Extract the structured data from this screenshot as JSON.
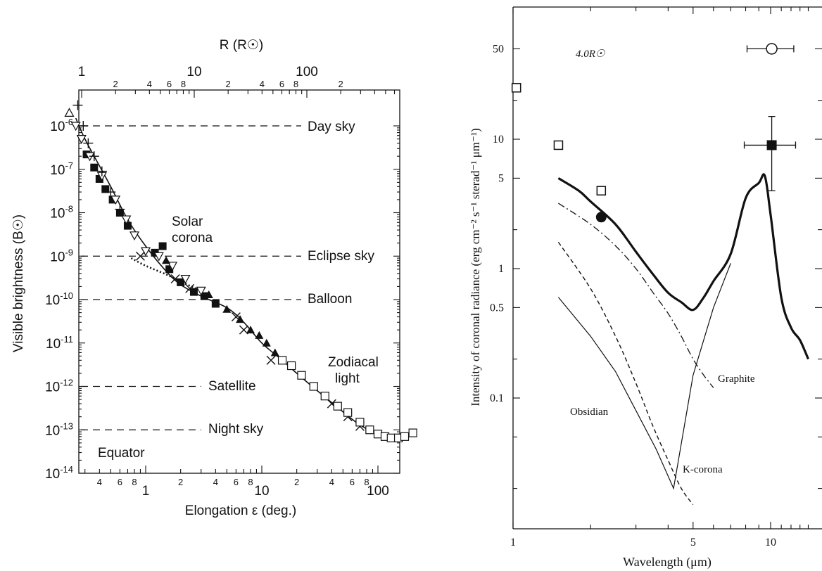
{
  "chart_data": [
    {
      "type": "scatter",
      "title": "",
      "top_axis": {
        "label": "R (R☉)",
        "major_ticks": [
          1,
          10,
          100
        ],
        "minor_tick_labels": [
          {
            "value": 2,
            "label": "2"
          },
          {
            "value": 4,
            "label": "4"
          },
          {
            "value": 6,
            "label": "6"
          },
          {
            "value": 8,
            "label": "8"
          },
          {
            "value": 20,
            "label": "2"
          },
          {
            "value": 40,
            "label": "4"
          },
          {
            "value": 60,
            "label": "6"
          },
          {
            "value": 80,
            "label": "8"
          },
          {
            "value": 200,
            "label": "2"
          }
        ],
        "range": [
          1,
          400
        ],
        "scale": "log"
      },
      "xlabel": "Elongation ε (deg.)",
      "ylabel": "Visible brightness (B☉)",
      "xlim": [
        0.2,
        200
      ],
      "ylim": [
        1e-14,
        5e-06
      ],
      "xscale": "log",
      "yscale": "log",
      "x_major_ticks": [
        {
          "value": 1,
          "label": "1"
        },
        {
          "value": 10,
          "label": "10"
        },
        {
          "value": 100,
          "label": "100"
        }
      ],
      "x_minor_tick_labels": [
        {
          "value": 0.4,
          "label": "4"
        },
        {
          "value": 0.6,
          "label": "6"
        },
        {
          "value": 0.8,
          "label": "8"
        },
        {
          "value": 2,
          "label": "2"
        },
        {
          "value": 4,
          "label": "4"
        },
        {
          "value": 6,
          "label": "6"
        },
        {
          "value": 8,
          "label": "8"
        },
        {
          "value": 20,
          "label": "2"
        },
        {
          "value": 40,
          "label": "4"
        },
        {
          "value": 60,
          "label": "6"
        },
        {
          "value": 80,
          "label": "8"
        }
      ],
      "y_ticks": [
        {
          "exp": -14
        },
        {
          "exp": -13
        },
        {
          "exp": -12
        },
        {
          "exp": -11
        },
        {
          "exp": -10
        },
        {
          "exp": -9
        },
        {
          "exp": -8
        },
        {
          "exp": -7
        },
        {
          "exp": -6
        }
      ],
      "reference_lines": [
        {
          "label": "Day sky",
          "y": 1e-06
        },
        {
          "label": "Eclipse sky",
          "y": 1e-09
        },
        {
          "label": "Balloon",
          "y": 1e-10
        },
        {
          "label": "Satellite",
          "y": 1e-12
        },
        {
          "label": "Night sky",
          "y": 1e-13
        }
      ],
      "annotations": {
        "corona_line1": "Solar",
        "corona_line2": "corona",
        "zodiacal_line1": "Zodiacal",
        "zodiacal_line2": "light",
        "equator": "Equator"
      },
      "fit_curve": {
        "x": [
          0.25,
          0.3,
          0.4,
          0.5,
          0.7,
          1.0,
          1.5,
          2,
          3,
          5,
          7,
          10,
          15,
          20,
          30,
          50,
          70,
          100,
          130,
          160,
          200
        ],
        "y": [
          1.5e-06,
          5e-07,
          1.2e-07,
          4e-08,
          7e-09,
          1.7e-09,
          4.5e-10,
          2.2e-10,
          1.2e-10,
          6.5e-11,
          3e-11,
          1e-11,
          4e-12,
          2e-12,
          8e-13,
          2.6e-13,
          1.3e-13,
          8e-14,
          7e-14,
          7e-14,
          8.5e-14
        ]
      },
      "dotted_curve": {
        "x": [
          0.75,
          1.0,
          1.5,
          2.0,
          2.7
        ],
        "y": [
          9e-10,
          6e-10,
          3.8e-10,
          2.6e-10,
          1.8e-10
        ]
      },
      "series": [
        {
          "marker": "filled-square",
          "x": [
            0.31,
            0.36,
            0.4,
            0.45,
            0.52,
            0.6,
            0.7,
            1.2,
            1.4,
            1.6,
            2.0,
            2.6,
            3.2,
            4.0
          ],
          "y": [
            2.2e-07,
            1.1e-07,
            6e-08,
            3.5e-08,
            2e-08,
            1e-08,
            5e-09,
            1.2e-09,
            1.7e-09,
            5e-10,
            2.5e-10,
            1.5e-10,
            1.2e-10,
            8e-11
          ]
        },
        {
          "marker": "open-triangle-down",
          "x": [
            0.25,
            0.28,
            0.33,
            0.42,
            0.55,
            0.68,
            0.8,
            1.0,
            1.3,
            1.7,
            2.2,
            3.0
          ],
          "y": [
            1e-06,
            5e-07,
            2e-07,
            7e-08,
            2e-08,
            7e-09,
            3e-09,
            1.3e-09,
            1e-09,
            6e-10,
            3e-10,
            1.6e-10
          ]
        },
        {
          "marker": "plus",
          "x": [
            0.26,
            0.29,
            0.32,
            0.36,
            0.42,
            0.5,
            0.6
          ],
          "y": [
            3e-06,
            1e-06,
            4e-07,
            2e-07,
            9e-08,
            3e-08,
            1.2e-08
          ]
        },
        {
          "marker": "cross",
          "x": [
            0.9,
            1.8,
            2.4,
            6.0,
            7.0,
            12,
            40,
            55,
            70
          ],
          "y": [
            1e-09,
            3e-10,
            1.8e-10,
            4e-11,
            2e-11,
            4e-12,
            4e-13,
            2e-13,
            1.2e-13
          ]
        },
        {
          "marker": "filled-triangle",
          "x": [
            1.5,
            3.5,
            5,
            6.5,
            8,
            9.5,
            11,
            13
          ],
          "y": [
            8e-10,
            1.3e-10,
            6e-11,
            3.5e-11,
            2e-11,
            1.5e-11,
            1e-11,
            6e-12
          ]
        },
        {
          "marker": "open-square",
          "x": [
            15,
            18,
            22,
            28,
            35,
            45,
            55,
            70,
            85,
            100,
            115,
            130,
            150,
            170,
            200
          ],
          "y": [
            4e-12,
            3e-12,
            1.8e-12,
            1e-12,
            6e-13,
            3.5e-13,
            2.5e-13,
            1.5e-13,
            1e-13,
            8e-14,
            7e-14,
            6.5e-14,
            6.5e-14,
            7e-14,
            8.5e-14
          ]
        },
        {
          "marker": "open-triangle-up",
          "x": [
            0.22
          ],
          "y": [
            2e-06
          ]
        }
      ]
    },
    {
      "type": "line",
      "title": "",
      "annotation": "4.0R☉",
      "xlabel": "Wavelength (μm)",
      "ylabel": "Intensity of coronal radiance (erg cm⁻² s⁻¹ sterad⁻¹ μm⁻¹)",
      "xlim": [
        1,
        14
      ],
      "ylim": [
        0.009,
        100
      ],
      "xscale": "log",
      "yscale": "log",
      "x_ticks": [
        {
          "value": 1,
          "label": "1"
        },
        {
          "value": 5,
          "label": "5"
        },
        {
          "value": 10,
          "label": "10"
        }
      ],
      "y_ticks": [
        {
          "value": 0.1,
          "label": "0.1"
        },
        {
          "value": 0.5,
          "label": "0.5"
        },
        {
          "value": 1,
          "label": "1"
        },
        {
          "value": 5,
          "label": "5"
        },
        {
          "value": 10,
          "label": "10"
        },
        {
          "value": 50,
          "label": "50"
        }
      ],
      "series": [
        {
          "name": "Obsidian",
          "style": "thin-solid",
          "x": [
            1.5,
            2.0,
            2.5,
            3.0,
            3.6,
            4.2,
            5.0,
            6.0,
            7.0
          ],
          "y": [
            0.6,
            0.3,
            0.16,
            0.08,
            0.04,
            0.02,
            0.15,
            0.5,
            1.1
          ]
        },
        {
          "name": "K-corona",
          "style": "dashed",
          "x": [
            1.5,
            2.0,
            2.5,
            3.0,
            3.5,
            4.0,
            4.5,
            5.0
          ],
          "y": [
            1.6,
            0.7,
            0.3,
            0.13,
            0.06,
            0.033,
            0.02,
            0.015
          ]
        },
        {
          "name": "Graphite",
          "style": "dash-dot",
          "x": [
            1.5,
            2.0,
            2.5,
            3.0,
            3.5,
            4.0,
            4.5,
            5.0,
            5.5,
            6.0
          ],
          "y": [
            3.2,
            2.2,
            1.5,
            1.0,
            0.65,
            0.45,
            0.3,
            0.2,
            0.15,
            0.12
          ]
        },
        {
          "name": "",
          "style": "thick-solid",
          "x": [
            1.5,
            1.8,
            2.0,
            2.5,
            3.0,
            3.5,
            4.0,
            4.5,
            5.0,
            5.5,
            6.0,
            7.0,
            8.0,
            9.0,
            9.5,
            10.0,
            11.0,
            12.0,
            13.0,
            14.0
          ],
          "y": [
            5,
            4,
            3.3,
            2.2,
            1.35,
            0.9,
            0.65,
            0.55,
            0.48,
            0.6,
            0.8,
            1.3,
            3.5,
            4.6,
            5.2,
            2.6,
            0.6,
            0.35,
            0.28,
            0.2
          ]
        }
      ],
      "points": [
        {
          "marker": "open-square",
          "x": 1.03,
          "y": 25
        },
        {
          "marker": "open-square",
          "x": 1.5,
          "y": 9
        },
        {
          "marker": "open-square",
          "x": 2.2,
          "y": 4
        },
        {
          "marker": "filled-circle",
          "x": 2.2,
          "y": 2.5
        },
        {
          "marker": "open-circle",
          "x": 10.1,
          "y": 50,
          "xerr": [
            8.1,
            12.3
          ]
        },
        {
          "marker": "filled-square",
          "x": 10.1,
          "y": 9,
          "xerr": [
            7.9,
            12.5
          ],
          "yerr": [
            4,
            15
          ]
        }
      ]
    }
  ]
}
